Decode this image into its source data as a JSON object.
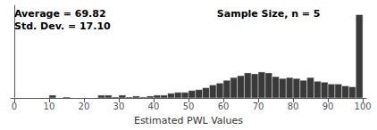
{
  "chart_data": {
    "type": "histogram",
    "annotations": [
      "Average = 69.82\nStd. Dev. = 17.10",
      "Sample Size, n = 5"
    ],
    "xlabel": "Estimated PWL Values",
    "bins": [
      0,
      2,
      4,
      6,
      8,
      10,
      12,
      14,
      16,
      18,
      20,
      22,
      24,
      26,
      28,
      30,
      32,
      34,
      36,
      38,
      40,
      42,
      44,
      46,
      48,
      50,
      52,
      54,
      56,
      58,
      60,
      62,
      64,
      66,
      68,
      70,
      72,
      74,
      76,
      78,
      80,
      82,
      84,
      86,
      88,
      90,
      92,
      94,
      96,
      98,
      100
    ],
    "values": [
      0,
      0,
      0,
      0,
      0,
      3,
      0,
      1,
      0,
      0,
      0,
      0,
      3,
      3,
      1,
      3,
      1,
      2,
      1,
      2,
      3,
      3,
      5,
      6,
      6,
      8,
      9,
      11,
      14,
      16,
      19,
      22,
      24,
      27,
      26,
      28,
      27,
      23,
      21,
      22,
      21,
      19,
      22,
      18,
      17,
      15,
      15,
      13,
      12,
      90
    ],
    "color": "#3a3a3a",
    "xlim": [
      -1,
      101
    ],
    "xticks": [
      0,
      10,
      20,
      30,
      40,
      50,
      60,
      70,
      80,
      90,
      100
    ],
    "ylim": [
      0,
      100
    ],
    "tick_labels": "x",
    "grid": false
  }
}
